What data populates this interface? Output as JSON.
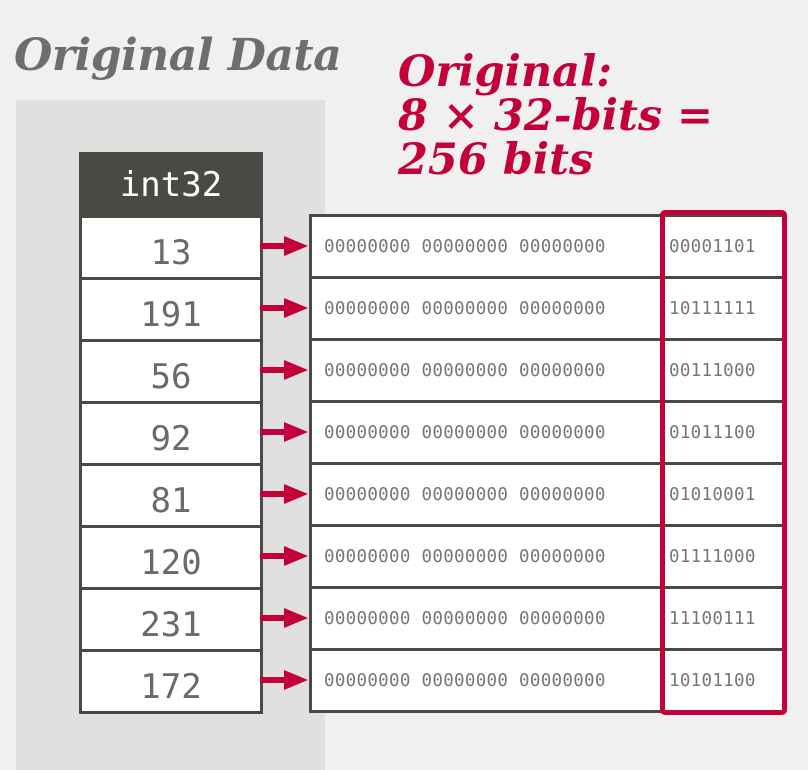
{
  "title": "Original Data",
  "note": {
    "line1": "Original:",
    "line2": "8 × 32-bits =",
    "line3": "256 bits"
  },
  "column": {
    "header": "int32",
    "values": [
      "13",
      "191",
      "56",
      "92",
      "81",
      "120",
      "231",
      "172"
    ]
  },
  "bits": [
    {
      "lead": "00000000 00000000 00000000",
      "last": "00001101"
    },
    {
      "lead": "00000000 00000000 00000000",
      "last": "10111111"
    },
    {
      "lead": "00000000 00000000 00000000",
      "last": "00111000"
    },
    {
      "lead": "00000000 00000000 00000000",
      "last": "01011100"
    },
    {
      "lead": "00000000 00000000 00000000",
      "last": "01010001"
    },
    {
      "lead": "00000000 00000000 00000000",
      "last": "01111000"
    },
    {
      "lead": "00000000 00000000 00000000",
      "last": "11100111"
    },
    {
      "lead": "00000000 00000000 00000000",
      "last": "10101100"
    }
  ],
  "colors": {
    "accent": "#c4003a",
    "dark": "#4a4a44",
    "title_gray": "#6e6e6e"
  }
}
